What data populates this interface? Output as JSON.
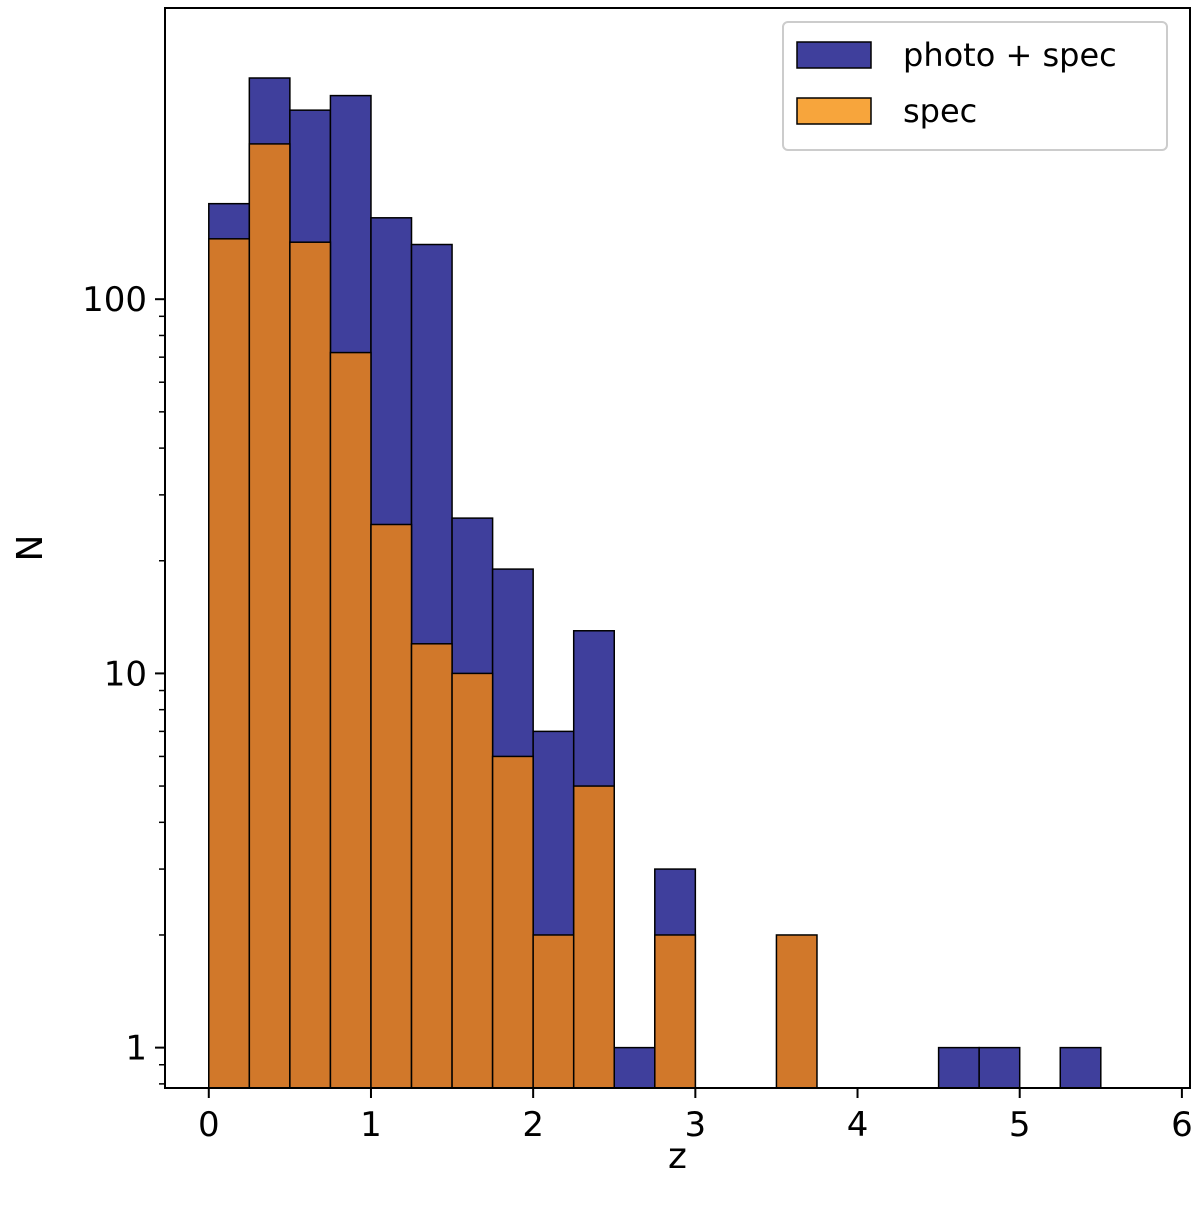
{
  "chart_data": {
    "type": "bar",
    "histogram": true,
    "stacked": false,
    "xlabel": "z",
    "ylabel": "N",
    "xlim": [
      -0.27,
      6.05
    ],
    "ylim": [
      0.78,
      600
    ],
    "y_scale": "log",
    "grid": false,
    "legend_position": "top-right",
    "x_ticks": [
      0,
      1,
      2,
      3,
      4,
      5,
      6
    ],
    "x_tick_labels": [
      "0",
      "1",
      "2",
      "3",
      "4",
      "5",
      "6"
    ],
    "y_ticks": [
      1,
      10,
      100
    ],
    "y_tick_labels": [
      "1",
      "10",
      "100"
    ],
    "bin_width": 0.25,
    "bin_starts": [
      0.0,
      0.25,
      0.5,
      0.75,
      1.0,
      1.25,
      1.5,
      1.75,
      2.0,
      2.25,
      2.5,
      2.75,
      3.0,
      3.25,
      3.5,
      3.75,
      4.0,
      4.25,
      4.5,
      4.75,
      5.0,
      5.25
    ],
    "series": [
      {
        "name": "photo + spec",
        "color": "#3f3f9c",
        "values": [
          180,
          390,
          320,
          350,
          165,
          140,
          26,
          19,
          7,
          13,
          1,
          3,
          0,
          0,
          0,
          0,
          0,
          0,
          1,
          1,
          0,
          1
        ]
      },
      {
        "name": "spec",
        "color": "#d1782a",
        "legend_color": "#f7a53c",
        "values": [
          145,
          260,
          142,
          72,
          25,
          12,
          10,
          6,
          2,
          5,
          0,
          2,
          0,
          0,
          2,
          0,
          0,
          0,
          0,
          0,
          0,
          0
        ]
      }
    ]
  }
}
